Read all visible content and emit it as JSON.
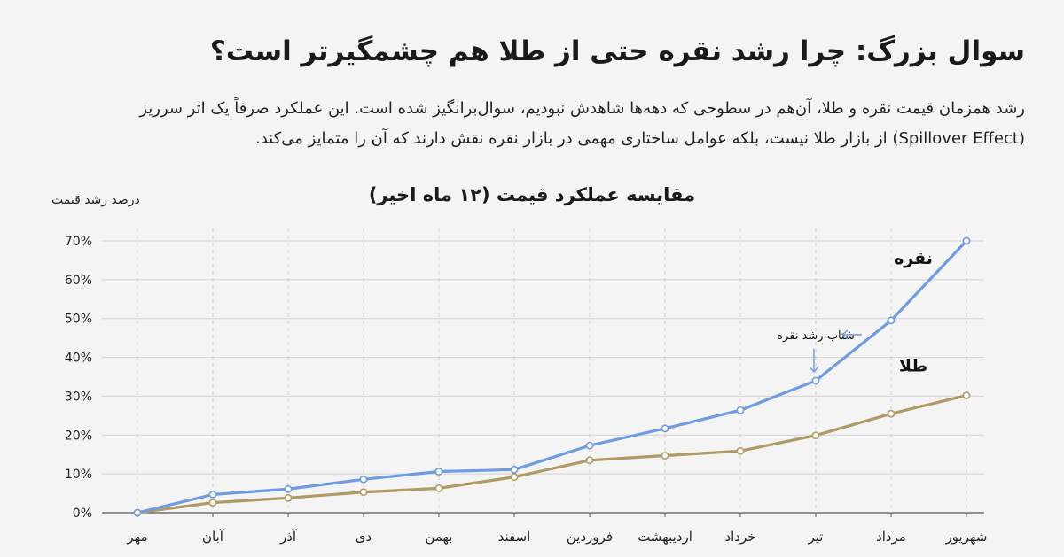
{
  "page": {
    "title": "سوال بزرگ: چرا رشد نقره حتی از طلا هم چشمگیرتر است؟",
    "intro_lines": [
      "رشد همزمان قیمت نقره و طلا، آن‌هم در سطوحی که دهه‌ها شاهدش نبودیم، سوال‌برانگیز شده است. این عملکرد صرفاً یک اثر سرریز",
      "(Spillover Effect) از بازار طلا نیست، بلکه عوامل ساختاری مهمی در بازار نقره نقش دارند که آن را متمایز می‌کند."
    ]
  },
  "chart_data": {
    "type": "line",
    "title": "مقایسه عملکرد قیمت (۱۲ ماه اخیر)",
    "ylabel": "درصد رشد قیمت",
    "xlabel": "",
    "categories": [
      "مهر",
      "آبان",
      "آذر",
      "دی",
      "بهمن",
      "اسفند",
      "فروردین",
      "اردیبهشت",
      "خرداد",
      "تیر",
      "مرداد",
      "شهریور"
    ],
    "y_ticks": [
      "0%",
      "10%",
      "20%",
      "30%",
      "40%",
      "50%",
      "60%",
      "70%"
    ],
    "ylim": [
      0,
      70
    ],
    "grid": "vertical-dashed",
    "series": [
      {
        "name": "نقره",
        "color": "#6f9be3",
        "values": [
          0,
          4.7,
          6.1,
          8.6,
          10.6,
          11.1,
          17.3,
          21.7,
          26.4,
          34.0,
          49.5,
          70.0
        ]
      },
      {
        "name": "طلا",
        "color": "#b19b64",
        "values": [
          0,
          2.6,
          3.8,
          5.3,
          6.3,
          9.2,
          13.5,
          14.7,
          15.9,
          19.9,
          25.5,
          30.2
        ]
      }
    ],
    "annotation": {
      "text": "شتاب رشد نقره",
      "series": 0,
      "category_index": 9
    }
  }
}
